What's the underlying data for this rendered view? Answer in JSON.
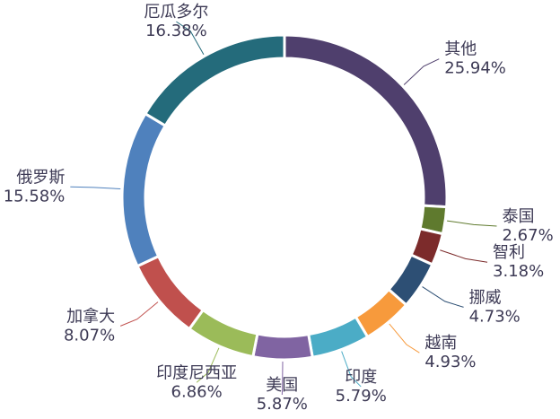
{
  "chart_data": {
    "type": "donut",
    "categories": [
      "其他",
      "泰国",
      "智利",
      "挪威",
      "越南",
      "印度",
      "美国",
      "印度尼西亚",
      "加拿大",
      "俄罗斯",
      "厄瓜多尔"
    ],
    "values": [
      25.94,
      2.67,
      3.18,
      4.73,
      4.93,
      5.79,
      5.87,
      6.86,
      8.07,
      15.58,
      16.38
    ],
    "value_labels": [
      "25.94%",
      "2.67%",
      "3.18%",
      "4.73%",
      "4.93%",
      "5.79%",
      "5.87%",
      "6.86%",
      "8.07%",
      "15.58%",
      "16.38%"
    ],
    "colors": [
      "#4f3f6d",
      "#5f7a2e",
      "#7c2b2b",
      "#2d4f74",
      "#f79a3c",
      "#4bacc6",
      "#8064a2",
      "#9bbb59",
      "#c0504d",
      "#4f81bd",
      "#246b7b"
    ]
  }
}
